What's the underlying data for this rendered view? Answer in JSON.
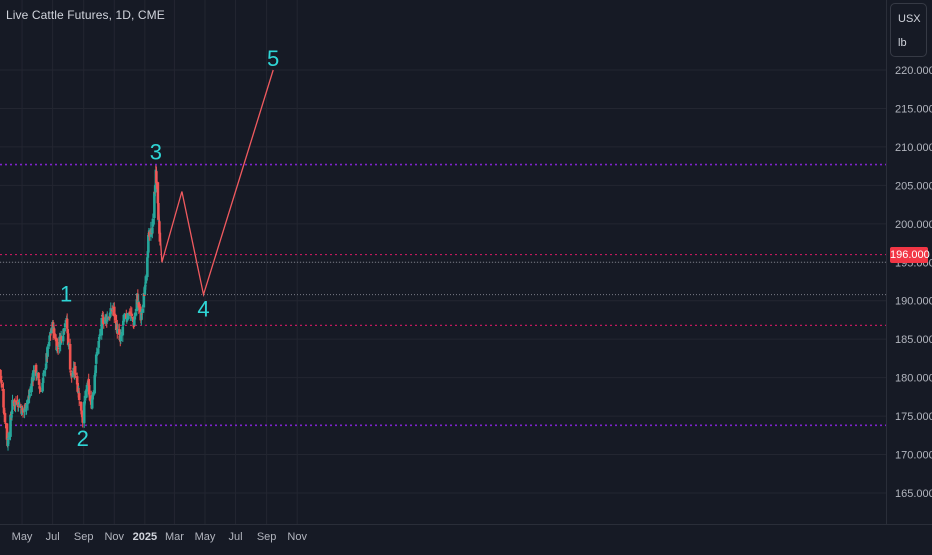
{
  "header": {
    "title": "Live Cattle Futures, 1D, CME"
  },
  "unit": {
    "currency": "USX",
    "measure": "lb"
  },
  "last_price": "196.000",
  "colors": {
    "background": "#161a25",
    "up_candle": "#26a69a",
    "down_candle": "#ef5350",
    "wave_path": "#f05a5f",
    "wave_label": "#2fd6d6",
    "purple_dotted": "#7e22ce",
    "red_dotted": "#c2185b",
    "last_price": "#f23645",
    "axis_text": "#b2b5be",
    "grid": "#232631"
  },
  "chart_data": {
    "type": "candlestick",
    "x_axis_labels": [
      "May",
      "Jul",
      "Sep",
      "Nov",
      "2025",
      "Mar",
      "May",
      "Jul",
      "Sep",
      "Nov"
    ],
    "y_ticks": [
      "165.000",
      "170.000",
      "175.000",
      "180.000",
      "185.000",
      "190.000",
      "195.000",
      "200.000",
      "205.000",
      "210.000",
      "215.000",
      "220.000"
    ],
    "ylim": [
      162,
      223
    ],
    "x_range": [
      "2024-03-18",
      "2025-11-15"
    ],
    "horizontal_levels": [
      {
        "price": 207.7,
        "style": "purple-dotted"
      },
      {
        "price": 173.8,
        "style": "purple-dotted"
      },
      {
        "price": 196.0,
        "style": "red-dotted"
      },
      {
        "price": 186.8,
        "style": "red-dotted"
      },
      {
        "price": 195.0,
        "style": "grey-dotted"
      },
      {
        "price": 190.8,
        "style": "grey-dotted"
      }
    ],
    "wave_labels": [
      {
        "label": "1",
        "date": "2024-07-28",
        "price": 188.6
      },
      {
        "label": "2",
        "date": "2024-08-30",
        "price": 174.0
      },
      {
        "label": "3",
        "date": "2025-01-23",
        "price": 207.6
      },
      {
        "label": "4",
        "date": "2025-04-28",
        "price": 190.8
      },
      {
        "label": "5",
        "date": "2025-09-14",
        "price": 220.0
      }
    ],
    "projection": [
      {
        "date": "2025-01-23",
        "price": 207.6
      },
      {
        "date": "2025-02-04",
        "price": 195.0
      },
      {
        "date": "2025-03-16",
        "price": 204.2
      },
      {
        "date": "2025-04-28",
        "price": 190.8
      },
      {
        "date": "2025-09-14",
        "price": 220.0
      }
    ],
    "price_anchors": [
      {
        "date": "2024-03-18",
        "price": 181.0
      },
      {
        "date": "2024-04-02",
        "price": 171.5
      },
      {
        "date": "2024-04-12",
        "price": 176.5
      },
      {
        "date": "2024-04-22",
        "price": 177.0
      },
      {
        "date": "2024-05-03",
        "price": 175.5
      },
      {
        "date": "2024-05-15",
        "price": 177.5
      },
      {
        "date": "2024-05-26",
        "price": 181.5
      },
      {
        "date": "2024-06-08",
        "price": 178.0
      },
      {
        "date": "2024-06-20",
        "price": 183.0
      },
      {
        "date": "2024-06-30",
        "price": 187.0
      },
      {
        "date": "2024-07-10",
        "price": 184.0
      },
      {
        "date": "2024-07-22",
        "price": 186.0
      },
      {
        "date": "2024-07-28",
        "price": 188.0
      },
      {
        "date": "2024-08-07",
        "price": 180.0
      },
      {
        "date": "2024-08-15",
        "price": 181.0
      },
      {
        "date": "2024-08-22",
        "price": 178.0
      },
      {
        "date": "2024-08-30",
        "price": 174.8
      },
      {
        "date": "2024-09-09",
        "price": 179.5
      },
      {
        "date": "2024-09-16",
        "price": 176.0
      },
      {
        "date": "2024-09-26",
        "price": 182.5
      },
      {
        "date": "2024-10-08",
        "price": 187.5
      },
      {
        "date": "2024-10-22",
        "price": 188.0
      },
      {
        "date": "2024-10-30",
        "price": 189.0
      },
      {
        "date": "2024-11-06",
        "price": 186.5
      },
      {
        "date": "2024-11-13",
        "price": 184.5
      },
      {
        "date": "2024-11-20",
        "price": 187.5
      },
      {
        "date": "2024-12-02",
        "price": 188.5
      },
      {
        "date": "2024-12-10",
        "price": 187.0
      },
      {
        "date": "2024-12-17",
        "price": 190.5
      },
      {
        "date": "2024-12-24",
        "price": 187.5
      },
      {
        "date": "2024-12-31",
        "price": 191.0
      },
      {
        "date": "2025-01-08",
        "price": 198.0
      },
      {
        "date": "2025-01-15",
        "price": 199.0
      },
      {
        "date": "2025-01-23",
        "price": 206.5
      },
      {
        "date": "2025-01-28",
        "price": 201.0
      },
      {
        "date": "2025-02-01",
        "price": 197.0
      }
    ]
  }
}
